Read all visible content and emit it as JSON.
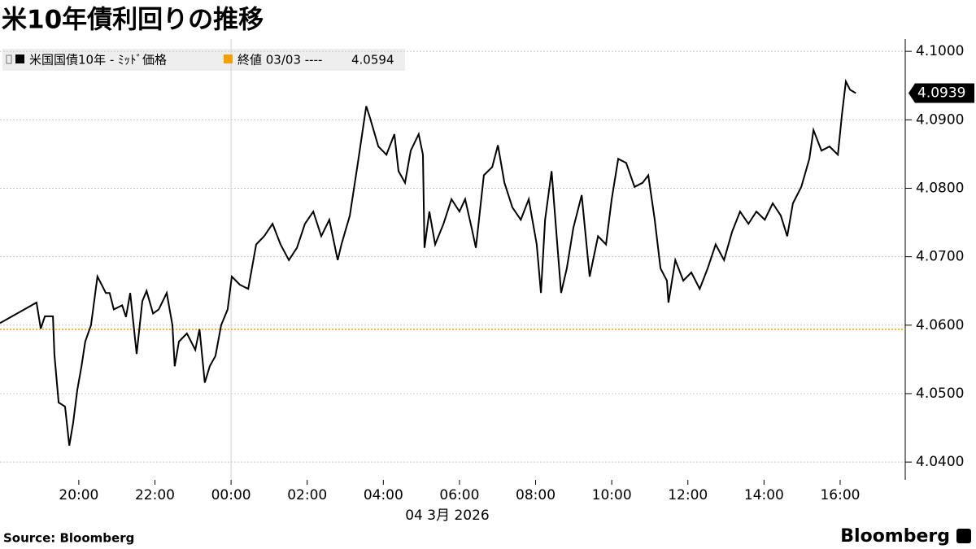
{
  "chart_data": {
    "type": "line",
    "title": "米10年債利回りの推移",
    "date_label": "04 3月 2026",
    "source": "Source:  Bloomberg",
    "logo": "Bloomberg",
    "x": [
      17.93,
      18.89,
      19.0,
      19.11,
      19.32,
      19.36,
      19.47,
      19.64,
      19.75,
      19.85,
      19.96,
      20.07,
      20.17,
      20.32,
      20.49,
      20.6,
      20.71,
      20.81,
      20.92,
      21.14,
      21.24,
      21.35,
      21.52,
      21.67,
      21.78,
      21.95,
      22.1,
      22.31,
      22.46,
      22.52,
      22.63,
      22.84,
      23.06,
      23.17,
      23.31,
      23.44,
      23.59,
      23.74,
      23.91,
      24.02,
      24.23,
      24.45,
      24.66,
      24.87,
      25.09,
      25.3,
      25.52,
      25.73,
      25.94,
      26.16,
      26.37,
      26.58,
      26.8,
      26.9,
      27.12,
      27.33,
      27.55,
      27.65,
      27.87,
      28.08,
      28.29,
      28.4,
      28.57,
      28.72,
      28.93,
      29.04,
      29.08,
      29.21,
      29.36,
      29.58,
      29.79,
      30.0,
      30.15,
      30.32,
      30.43,
      30.64,
      30.86,
      31.01,
      31.18,
      31.39,
      31.61,
      31.82,
      32.03,
      32.14,
      32.25,
      32.42,
      32.57,
      32.67,
      32.82,
      32.99,
      33.21,
      33.42,
      33.64,
      33.85,
      34.0,
      34.17,
      34.38,
      34.6,
      34.81,
      34.96,
      35.13,
      35.28,
      35.45,
      35.49,
      35.67,
      35.88,
      36.09,
      36.31,
      36.52,
      36.73,
      36.95,
      37.16,
      37.37,
      37.59,
      37.8,
      38.02,
      38.23,
      38.44,
      38.61,
      38.76,
      38.98,
      39.19,
      39.3,
      39.51,
      39.72,
      39.94,
      40.05,
      40.15,
      40.26,
      40.41
    ],
    "series": [
      {
        "name": "米国国債10年 - ﾐｯﾄﾞ価格",
        "color": "#000000",
        "values": [
          4.0603,
          4.0633,
          4.0595,
          4.0613,
          4.0613,
          4.0557,
          4.0487,
          4.0481,
          4.0424,
          4.0457,
          4.0505,
          4.054,
          4.0576,
          4.06,
          4.0671,
          4.0659,
          4.0647,
          4.0647,
          4.0623,
          4.0629,
          4.0612,
          4.0647,
          4.0558,
          4.0635,
          4.065,
          4.0617,
          4.0623,
          4.0647,
          4.06,
          4.054,
          4.0576,
          4.0588,
          4.0564,
          4.0594,
          4.0516,
          4.054,
          4.0555,
          4.06,
          4.0623,
          4.0671,
          4.0659,
          4.0653,
          4.0718,
          4.073,
          4.0748,
          4.0718,
          4.0695,
          4.0713,
          4.0748,
          4.0766,
          4.073,
          4.0754,
          4.0695,
          4.0718,
          4.076,
          4.0837,
          4.092,
          4.0903,
          4.0861,
          4.0849,
          4.0879,
          4.0825,
          4.0808,
          4.0855,
          4.0879,
          4.0849,
          4.0713,
          4.0766,
          4.0718,
          4.0748,
          4.0784,
          4.0766,
          4.0784,
          4.0742,
          4.0713,
          4.0819,
          4.0831,
          4.0863,
          4.0808,
          4.0772,
          4.0754,
          4.0784,
          4.0718,
          4.0647,
          4.0754,
          4.0825,
          4.0718,
          4.0647,
          4.0683,
          4.0742,
          4.079,
          4.0671,
          4.073,
          4.0718,
          4.0784,
          4.0843,
          4.0837,
          4.0802,
          4.0808,
          4.0819,
          4.0754,
          4.0683,
          4.0665,
          4.0633,
          4.0695,
          4.0665,
          4.0677,
          4.0653,
          4.0683,
          4.0718,
          4.0695,
          4.0736,
          4.0766,
          4.0748,
          4.0766,
          4.0754,
          4.0778,
          4.076,
          4.073,
          4.0778,
          4.0802,
          4.0843,
          4.0885,
          4.0855,
          4.0861,
          4.0849,
          4.0909,
          4.0956,
          4.0944,
          4.0939
        ]
      }
    ],
    "reference": {
      "label": "終値 03/03 ----",
      "value": 4.0594,
      "color": "#f5a000"
    },
    "xlim": [
      17.93,
      41.71
    ],
    "xticks": [
      {
        "value": 20,
        "label": "20:00"
      },
      {
        "value": 22,
        "label": "22:00"
      },
      {
        "value": 24,
        "label": "00:00"
      },
      {
        "value": 26,
        "label": "02:00"
      },
      {
        "value": 28,
        "label": "04:00"
      },
      {
        "value": 30,
        "label": "06:00"
      },
      {
        "value": 32,
        "label": "08:00"
      },
      {
        "value": 34,
        "label": "10:00"
      },
      {
        "value": 36,
        "label": "12:00"
      },
      {
        "value": 38,
        "label": "14:00"
      },
      {
        "value": 40,
        "label": "16:00"
      }
    ],
    "ylim": [
      4.0374,
      4.1018
    ],
    "yticks": [
      {
        "value": 4.04,
        "label": "4.0400"
      },
      {
        "value": 4.05,
        "label": "4.0500"
      },
      {
        "value": 4.06,
        "label": "4.0600"
      },
      {
        "value": 4.07,
        "label": "4.0700"
      },
      {
        "value": 4.08,
        "label": "4.0800"
      },
      {
        "value": 4.09,
        "label": "4.0900"
      },
      {
        "value": 4.1,
        "label": "4.1000"
      }
    ],
    "grid": true
  }
}
